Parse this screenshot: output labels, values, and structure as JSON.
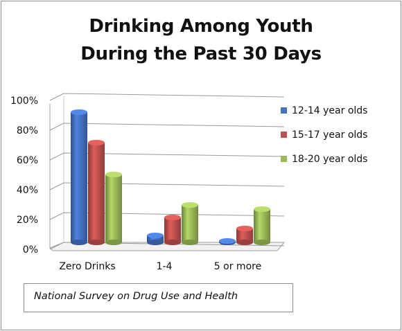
{
  "chart_data": {
    "type": "bar",
    "title_lines": [
      "Drinking Among Youth",
      "During the Past 30 Days"
    ],
    "categories": [
      "Zero Drinks",
      "1-4",
      "5 or more"
    ],
    "series": [
      {
        "name": "12-14 year olds",
        "values": [
          94,
          5,
          1
        ],
        "color": "#4472c4"
      },
      {
        "name": "15-17 year olds",
        "values": [
          72,
          18,
          10
        ],
        "color": "#c0504d"
      },
      {
        "name": "18-20 year olds",
        "values": [
          49,
          27,
          24
        ],
        "color": "#9bbb59"
      }
    ],
    "ylim": [
      0,
      100
    ],
    "yticks": [
      "0%",
      "20%",
      "40%",
      "60%",
      "80%",
      "100%"
    ],
    "xlabel": "",
    "ylabel": "",
    "grid": true,
    "legend_position": "right",
    "annotation": "National Survey on Drug Use and Health"
  }
}
